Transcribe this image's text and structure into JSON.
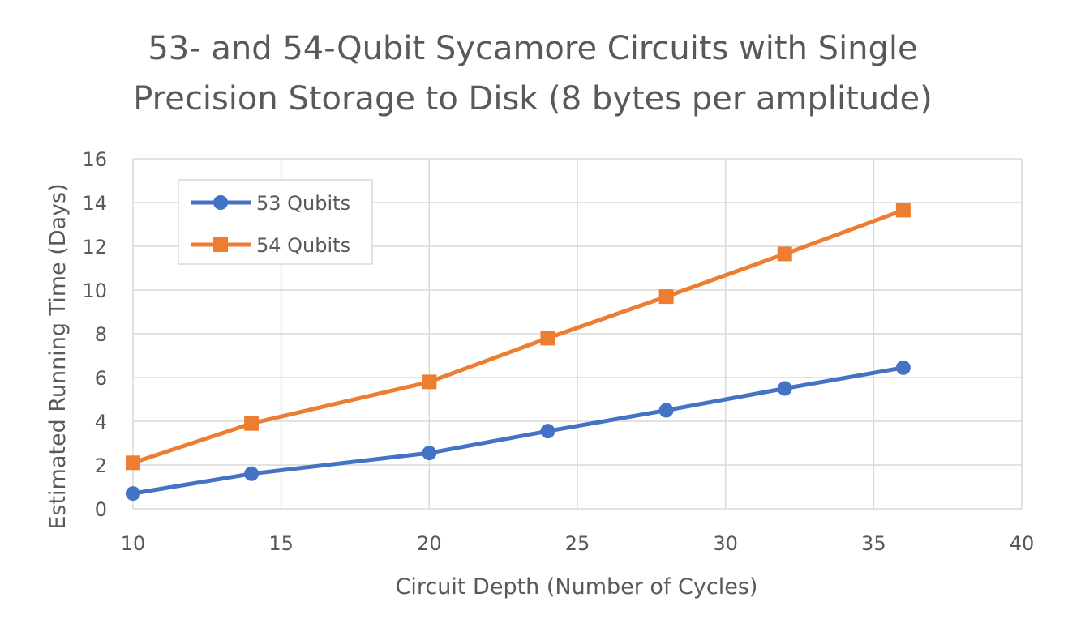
{
  "chart_data": {
    "type": "line",
    "title_lines": [
      "53- and 54-Qubit Sycamore Circuits with Single",
      "Precision Storage to Disk (8 bytes per amplitude)"
    ],
    "xlabel": "Circuit Depth (Number of Cycles)",
    "ylabel": "Estimated Running Time (Days)",
    "xlim": [
      10,
      40
    ],
    "ylim": [
      0,
      16
    ],
    "xticks": [
      "10",
      "15",
      "20",
      "25",
      "30",
      "35",
      "40"
    ],
    "yticks": [
      "0",
      "2",
      "4",
      "6",
      "8",
      "10",
      "12",
      "14",
      "16"
    ],
    "grid": true,
    "legend_position": "top-left",
    "x": [
      10,
      14,
      20,
      24,
      28,
      32,
      36
    ],
    "series": [
      {
        "name": "53 Qubits",
        "values": [
          0.7,
          1.6,
          2.55,
          3.55,
          4.5,
          5.5,
          6.45
        ],
        "color": "#4472C4",
        "marker": "circle"
      },
      {
        "name": "54 Qubits",
        "values": [
          2.1,
          3.9,
          5.8,
          7.8,
          9.7,
          11.65,
          13.65
        ],
        "color": "#ED7D31",
        "marker": "square"
      }
    ]
  }
}
